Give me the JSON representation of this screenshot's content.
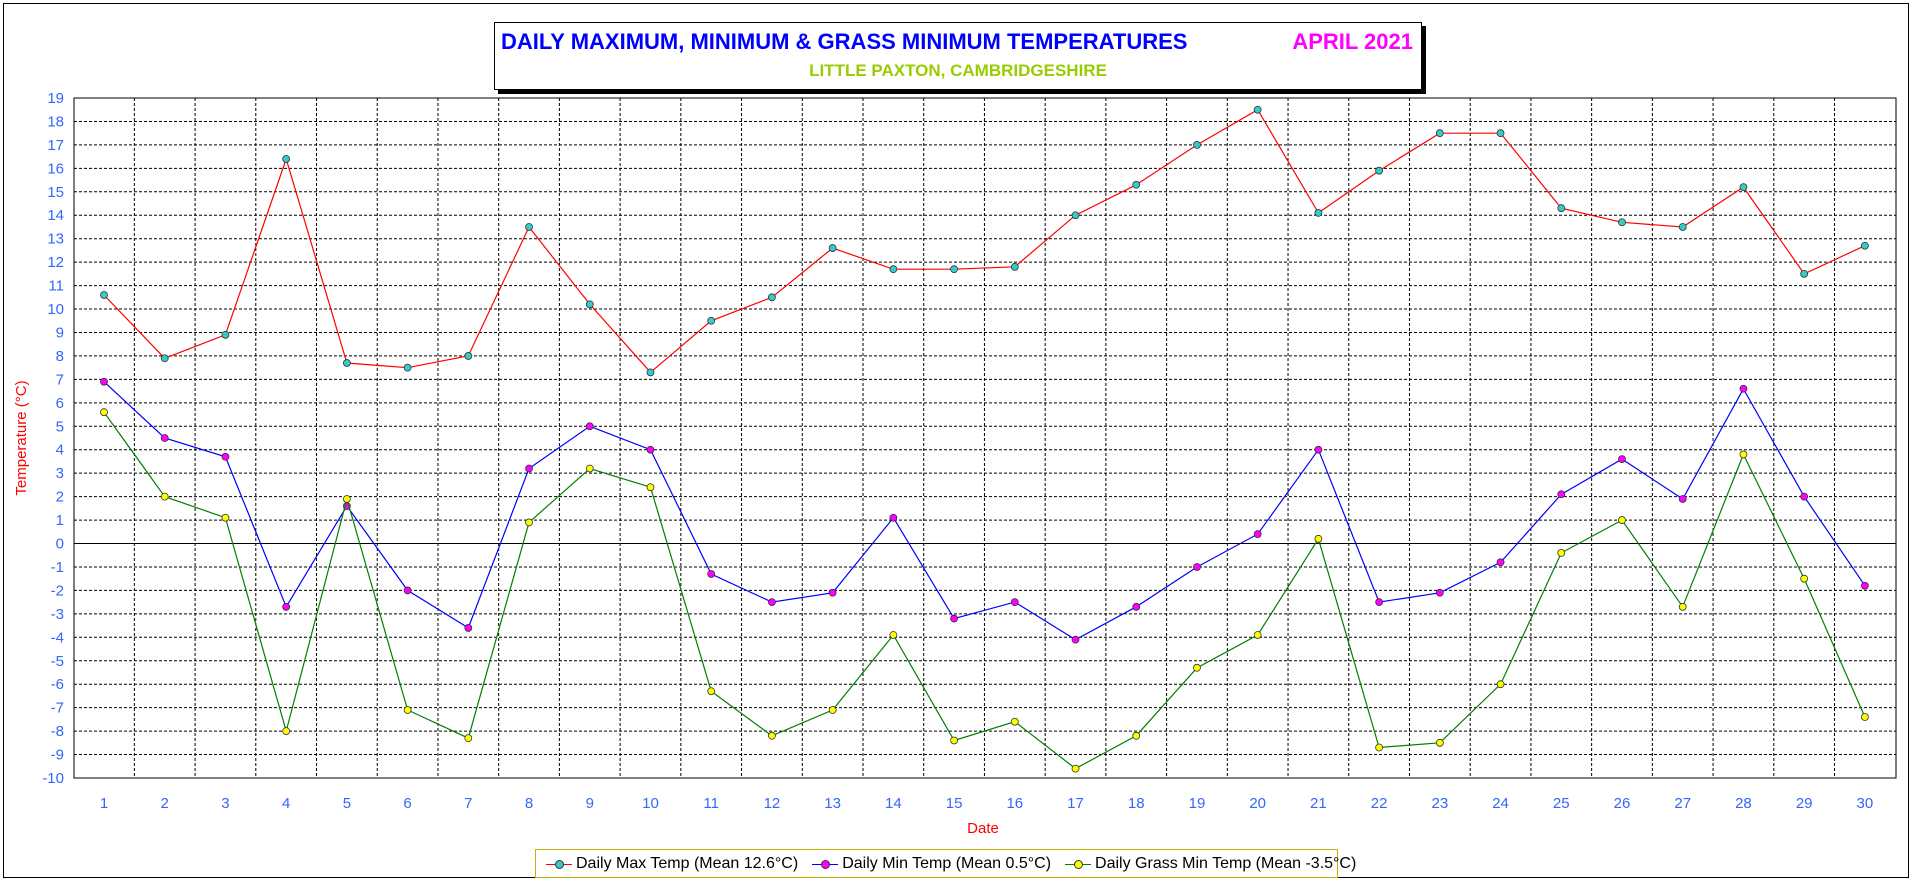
{
  "title": {
    "main": "DAILY MAXIMUM, MINIMUM & GRASS MINIMUM TEMPERATURES",
    "month": "APRIL 2021",
    "location": "LITTLE PAXTON, CAMBRIDGESHIRE"
  },
  "colors": {
    "title": "#0000ff",
    "month": "#ff00ff",
    "location": "#99cc00",
    "axis_label": "#ff0000",
    "tick_label": "#3366ff",
    "max_line": "#ff0000",
    "max_marker": "#33cccc",
    "min_line": "#0000ff",
    "min_marker": "#ff00ff",
    "grass_line": "#008000",
    "grass_marker": "#ffff00",
    "legend_border": "#c8b400"
  },
  "chart_data": {
    "type": "line",
    "xlabel": "Date",
    "ylabel": "Temperature (°C)",
    "ylim": [
      -10,
      19
    ],
    "grid": true,
    "legend_position": "bottom",
    "x": [
      1,
      2,
      3,
      4,
      5,
      6,
      7,
      8,
      9,
      10,
      11,
      12,
      13,
      14,
      15,
      16,
      17,
      18,
      19,
      20,
      21,
      22,
      23,
      24,
      25,
      26,
      27,
      28,
      29,
      30
    ],
    "series": [
      {
        "name": "Daily Max Temp (Mean 12.6°C)",
        "values": [
          10.6,
          7.9,
          8.9,
          16.4,
          7.7,
          7.5,
          8.0,
          13.5,
          10.2,
          7.3,
          9.5,
          10.5,
          12.6,
          11.7,
          11.7,
          11.8,
          14.0,
          15.3,
          17.0,
          18.5,
          14.1,
          15.9,
          17.5,
          17.5,
          14.3,
          13.7,
          13.5,
          15.2,
          11.5,
          12.7
        ]
      },
      {
        "name": "Daily Min Temp (Mean 0.5°C)",
        "values": [
          6.9,
          4.5,
          3.7,
          -2.7,
          1.6,
          -2.0,
          -3.6,
          3.2,
          5.0,
          4.0,
          -1.3,
          -2.5,
          -2.1,
          1.1,
          -3.2,
          -2.5,
          -4.1,
          -2.7,
          -1.0,
          0.4,
          4.0,
          -2.5,
          -2.1,
          -0.8,
          2.1,
          3.6,
          1.9,
          6.6,
          2.0,
          -1.8
        ]
      },
      {
        "name": "Daily Grass Min Temp (Mean -3.5°C)",
        "values": [
          5.6,
          2.0,
          1.1,
          -8.0,
          1.9,
          -7.1,
          -8.3,
          0.9,
          3.2,
          2.4,
          -6.3,
          -8.2,
          -7.1,
          -3.9,
          -8.4,
          -7.6,
          -9.6,
          -8.2,
          -5.3,
          -3.9,
          0.2,
          -8.7,
          -8.5,
          -6.0,
          -0.4,
          1.0,
          -2.7,
          3.8,
          -1.5,
          -7.4
        ]
      }
    ]
  }
}
